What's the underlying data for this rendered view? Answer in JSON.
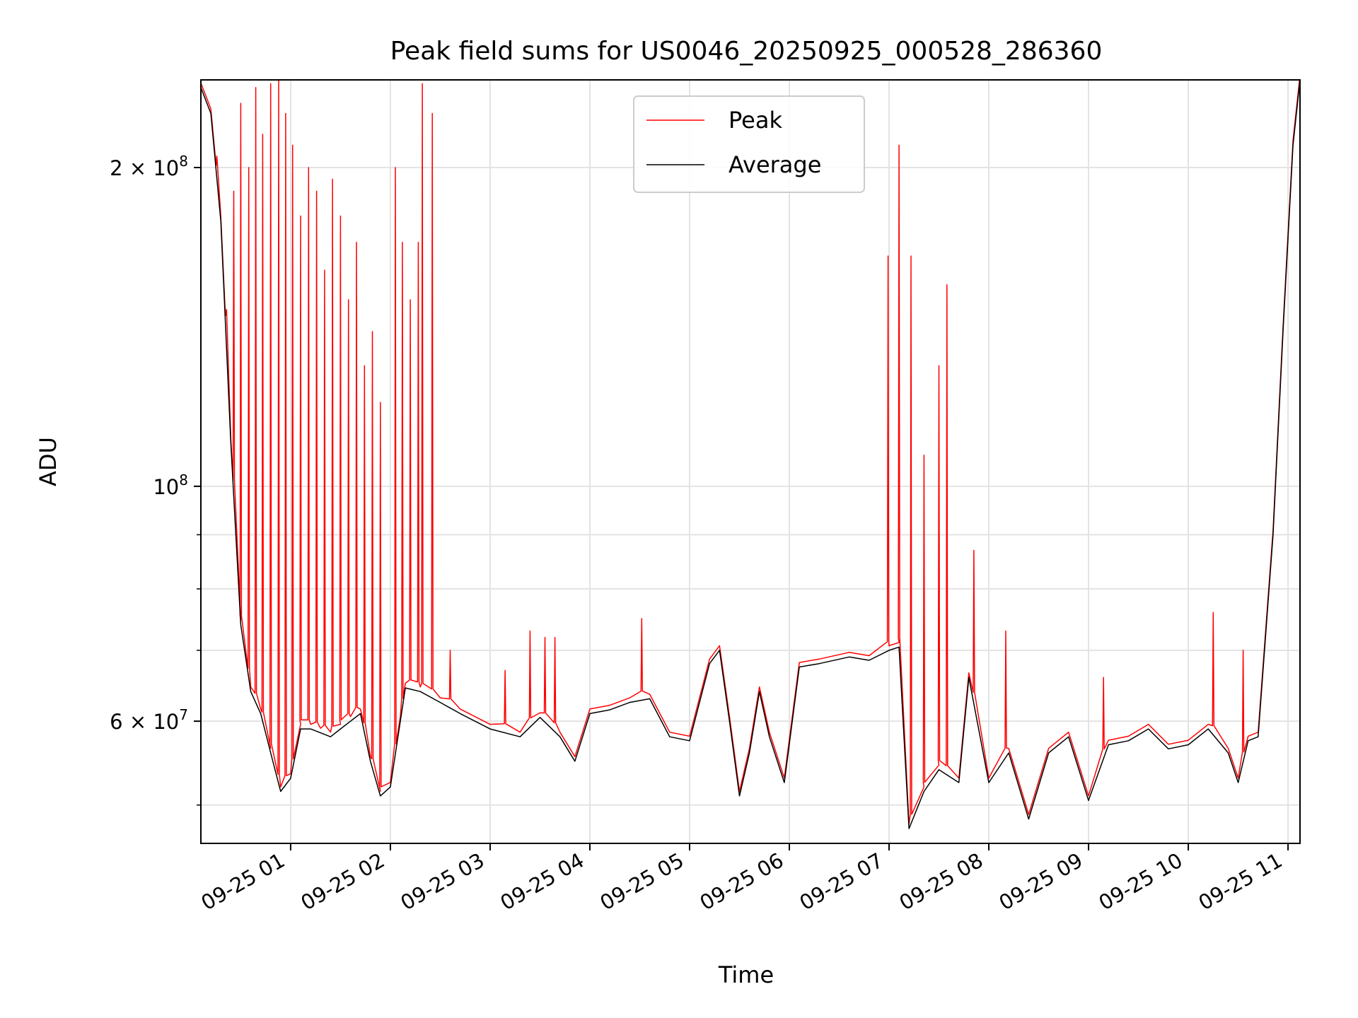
{
  "chart_data": {
    "type": "line",
    "title": "Peak field sums for US0046_20250925_000528_286360",
    "xlabel": "Time",
    "ylabel": "ADU",
    "yscale": "log",
    "ylim": [
      46000000,
      242000000
    ],
    "xlim_hours": [
      0.1,
      11.12
    ],
    "grid": true,
    "legend_position": "top-center",
    "x_ticks": [
      {
        "hour": 1,
        "label": "09-25 01"
      },
      {
        "hour": 2,
        "label": "09-25 02"
      },
      {
        "hour": 3,
        "label": "09-25 03"
      },
      {
        "hour": 4,
        "label": "09-25 04"
      },
      {
        "hour": 5,
        "label": "09-25 05"
      },
      {
        "hour": 6,
        "label": "09-25 06"
      },
      {
        "hour": 7,
        "label": "09-25 07"
      },
      {
        "hour": 8,
        "label": "09-25 08"
      },
      {
        "hour": 9,
        "label": "09-25 09"
      },
      {
        "hour": 10,
        "label": "09-25 10"
      },
      {
        "hour": 11,
        "label": "09-25 11"
      }
    ],
    "y_ticks": [
      {
        "value": 60000000,
        "base": "6 × 10",
        "exp": "7"
      },
      {
        "value": 100000000,
        "base": "10",
        "exp": "8"
      },
      {
        "value": 200000000,
        "base": "2 × 10",
        "exp": "8"
      }
    ],
    "y_minor_ticks": [
      50000000,
      70000000,
      80000000,
      90000000
    ],
    "series": [
      {
        "name": "Average",
        "color": "#000000",
        "points": [
          [
            0.1,
            238000000
          ],
          [
            0.2,
            225000000
          ],
          [
            0.3,
            178000000
          ],
          [
            0.4,
            110000000
          ],
          [
            0.5,
            74000000
          ],
          [
            0.6,
            64000000
          ],
          [
            0.7,
            61000000
          ],
          [
            0.8,
            56000000
          ],
          [
            0.9,
            51500000
          ],
          [
            1.0,
            53000000
          ],
          [
            1.1,
            59000000
          ],
          [
            1.2,
            59000000
          ],
          [
            1.3,
            58500000
          ],
          [
            1.4,
            58000000
          ],
          [
            1.5,
            59000000
          ],
          [
            1.6,
            60000000
          ],
          [
            1.7,
            61000000
          ],
          [
            1.8,
            55000000
          ],
          [
            1.9,
            51000000
          ],
          [
            2.0,
            52000000
          ],
          [
            2.1,
            60000000
          ],
          [
            2.15,
            64500000
          ],
          [
            2.3,
            64000000
          ],
          [
            2.5,
            62500000
          ],
          [
            2.7,
            61000000
          ],
          [
            3.0,
            59000000
          ],
          [
            3.3,
            58000000
          ],
          [
            3.5,
            60500000
          ],
          [
            3.7,
            58000000
          ],
          [
            3.85,
            55000000
          ],
          [
            4.0,
            61000000
          ],
          [
            4.2,
            61500000
          ],
          [
            4.4,
            62500000
          ],
          [
            4.6,
            63000000
          ],
          [
            4.8,
            58000000
          ],
          [
            5.0,
            57500000
          ],
          [
            5.2,
            68000000
          ],
          [
            5.3,
            70000000
          ],
          [
            5.4,
            60000000
          ],
          [
            5.5,
            51000000
          ],
          [
            5.6,
            56000000
          ],
          [
            5.7,
            64000000
          ],
          [
            5.8,
            58000000
          ],
          [
            5.95,
            52500000
          ],
          [
            6.1,
            67500000
          ],
          [
            6.3,
            68000000
          ],
          [
            6.6,
            69000000
          ],
          [
            6.8,
            68500000
          ],
          [
            7.0,
            70000000
          ],
          [
            7.1,
            70500000
          ],
          [
            7.2,
            47500000
          ],
          [
            7.35,
            51500000
          ],
          [
            7.5,
            54000000
          ],
          [
            7.7,
            52500000
          ],
          [
            7.8,
            66000000
          ],
          [
            8.0,
            52500000
          ],
          [
            8.2,
            56000000
          ],
          [
            8.4,
            48500000
          ],
          [
            8.6,
            56000000
          ],
          [
            8.8,
            58000000
          ],
          [
            9.0,
            50500000
          ],
          [
            9.2,
            57000000
          ],
          [
            9.4,
            57500000
          ],
          [
            9.6,
            59000000
          ],
          [
            9.8,
            56500000
          ],
          [
            10.0,
            57000000
          ],
          [
            10.2,
            59000000
          ],
          [
            10.4,
            56000000
          ],
          [
            10.5,
            52500000
          ],
          [
            10.6,
            57500000
          ],
          [
            10.7,
            58000000
          ],
          [
            10.85,
            90000000
          ],
          [
            10.95,
            140000000
          ],
          [
            11.05,
            210000000
          ],
          [
            11.12,
            242000000
          ]
        ]
      },
      {
        "name": "Peak",
        "color": "#ff0000",
        "spikes": [
          [
            0.26,
            205000000
          ],
          [
            0.35,
            145000000
          ],
          [
            0.43,
            190000000
          ],
          [
            0.5,
            230000000
          ],
          [
            0.58,
            200000000
          ],
          [
            0.65,
            238000000
          ],
          [
            0.72,
            215000000
          ],
          [
            0.8,
            240000000
          ],
          [
            0.88,
            242000000
          ],
          [
            0.95,
            225000000
          ],
          [
            1.02,
            210000000
          ],
          [
            1.1,
            180000000
          ],
          [
            1.18,
            200000000
          ],
          [
            1.26,
            190000000
          ],
          [
            1.34,
            160000000
          ],
          [
            1.42,
            195000000
          ],
          [
            1.5,
            180000000
          ],
          [
            1.58,
            150000000
          ],
          [
            1.66,
            170000000
          ],
          [
            1.74,
            130000000
          ],
          [
            1.82,
            140000000
          ],
          [
            1.9,
            120000000
          ],
          [
            2.05,
            200000000
          ],
          [
            2.12,
            170000000
          ],
          [
            2.2,
            150000000
          ],
          [
            2.28,
            170000000
          ],
          [
            2.32,
            240000000
          ],
          [
            2.42,
            225000000
          ],
          [
            2.6,
            70000000
          ],
          [
            3.15,
            67000000
          ],
          [
            3.4,
            73000000
          ],
          [
            3.55,
            72000000
          ],
          [
            3.65,
            72000000
          ],
          [
            4.52,
            75000000
          ],
          [
            6.99,
            165000000
          ],
          [
            7.1,
            210000000
          ],
          [
            7.22,
            165000000
          ],
          [
            7.35,
            107000000
          ],
          [
            7.5,
            130000000
          ],
          [
            7.58,
            155000000
          ],
          [
            7.85,
            87000000
          ],
          [
            8.17,
            73000000
          ],
          [
            9.15,
            66000000
          ],
          [
            10.25,
            76000000
          ],
          [
            10.55,
            70000000
          ]
        ]
      }
    ]
  }
}
